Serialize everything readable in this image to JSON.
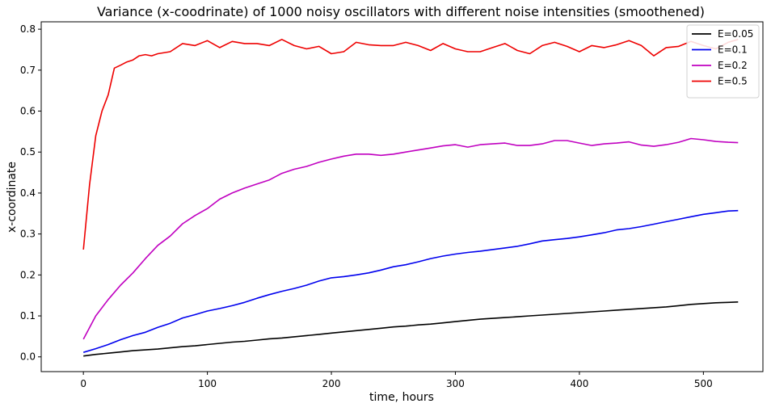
{
  "chart_data": {
    "type": "line",
    "title": "Variance (x-coodrinate) of 1000 noisy oscillators with different noise intensities (smoothened)",
    "xlabel": "time, hours",
    "ylabel": "x-coordinate",
    "xlim": [
      -34,
      548
    ],
    "ylim": [
      -0.036,
      0.818
    ],
    "xticks": [
      0,
      100,
      200,
      300,
      400,
      500
    ],
    "yticks": [
      0.0,
      0.1,
      0.2,
      0.3,
      0.4,
      0.5,
      0.6,
      0.7,
      0.8
    ],
    "grid": false,
    "legend_position": "top-right",
    "series": [
      {
        "name": "E=0.05",
        "color": "#000000",
        "x": [
          0,
          10,
          20,
          30,
          40,
          50,
          60,
          70,
          80,
          90,
          100,
          110,
          120,
          130,
          140,
          150,
          160,
          170,
          180,
          190,
          200,
          210,
          220,
          230,
          240,
          250,
          260,
          270,
          280,
          290,
          300,
          310,
          320,
          330,
          340,
          350,
          360,
          370,
          380,
          390,
          400,
          410,
          420,
          430,
          440,
          450,
          460,
          470,
          480,
          490,
          500,
          510,
          520,
          528
        ],
        "y": [
          0.002,
          0.006,
          0.009,
          0.012,
          0.015,
          0.017,
          0.019,
          0.022,
          0.025,
          0.027,
          0.03,
          0.033,
          0.036,
          0.038,
          0.041,
          0.044,
          0.046,
          0.049,
          0.052,
          0.055,
          0.058,
          0.061,
          0.064,
          0.067,
          0.07,
          0.073,
          0.075,
          0.078,
          0.08,
          0.083,
          0.086,
          0.089,
          0.092,
          0.094,
          0.096,
          0.098,
          0.1,
          0.102,
          0.104,
          0.106,
          0.108,
          0.11,
          0.112,
          0.114,
          0.116,
          0.118,
          0.12,
          0.122,
          0.125,
          0.128,
          0.13,
          0.132,
          0.133,
          0.134
        ]
      },
      {
        "name": "E=0.1",
        "color": "#0000ee",
        "x": [
          0,
          10,
          20,
          30,
          40,
          50,
          60,
          70,
          80,
          90,
          100,
          110,
          120,
          130,
          140,
          150,
          160,
          170,
          180,
          190,
          200,
          210,
          220,
          230,
          240,
          250,
          260,
          270,
          280,
          290,
          300,
          310,
          320,
          330,
          340,
          350,
          360,
          370,
          380,
          390,
          400,
          410,
          420,
          430,
          440,
          450,
          460,
          470,
          480,
          490,
          500,
          510,
          520,
          528
        ],
        "y": [
          0.011,
          0.02,
          0.03,
          0.042,
          0.052,
          0.06,
          0.072,
          0.082,
          0.095,
          0.103,
          0.112,
          0.118,
          0.125,
          0.133,
          0.143,
          0.152,
          0.16,
          0.167,
          0.175,
          0.185,
          0.193,
          0.196,
          0.2,
          0.205,
          0.212,
          0.22,
          0.225,
          0.232,
          0.24,
          0.246,
          0.251,
          0.255,
          0.258,
          0.262,
          0.266,
          0.27,
          0.276,
          0.283,
          0.286,
          0.289,
          0.293,
          0.298,
          0.303,
          0.31,
          0.313,
          0.318,
          0.324,
          0.33,
          0.336,
          0.342,
          0.348,
          0.352,
          0.356,
          0.357
        ]
      },
      {
        "name": "E=0.2",
        "color": "#c000c0",
        "x": [
          0,
          10,
          20,
          30,
          40,
          50,
          60,
          70,
          80,
          90,
          100,
          110,
          120,
          130,
          140,
          150,
          160,
          170,
          180,
          190,
          200,
          210,
          220,
          230,
          240,
          250,
          260,
          270,
          280,
          290,
          300,
          310,
          320,
          330,
          340,
          350,
          360,
          370,
          380,
          390,
          400,
          410,
          420,
          430,
          440,
          450,
          460,
          470,
          480,
          490,
          500,
          510,
          520,
          528
        ],
        "y": [
          0.043,
          0.1,
          0.14,
          0.175,
          0.205,
          0.24,
          0.272,
          0.295,
          0.325,
          0.345,
          0.362,
          0.385,
          0.4,
          0.412,
          0.422,
          0.432,
          0.448,
          0.458,
          0.465,
          0.475,
          0.483,
          0.49,
          0.495,
          0.495,
          0.492,
          0.495,
          0.5,
          0.505,
          0.51,
          0.515,
          0.518,
          0.512,
          0.518,
          0.52,
          0.522,
          0.516,
          0.516,
          0.52,
          0.528,
          0.528,
          0.522,
          0.516,
          0.52,
          0.522,
          0.525,
          0.517,
          0.514,
          0.518,
          0.524,
          0.533,
          0.53,
          0.526,
          0.524,
          0.523
        ]
      },
      {
        "name": "E=0.5",
        "color": "#ee0000",
        "x": [
          0,
          5,
          10,
          15,
          20,
          25,
          30,
          35,
          40,
          45,
          50,
          55,
          60,
          70,
          80,
          90,
          100,
          110,
          120,
          130,
          140,
          150,
          160,
          170,
          180,
          190,
          200,
          210,
          220,
          230,
          240,
          250,
          260,
          270,
          280,
          290,
          300,
          310,
          320,
          330,
          340,
          350,
          360,
          370,
          380,
          390,
          400,
          410,
          420,
          430,
          440,
          450,
          460,
          470,
          480,
          490,
          500,
          510,
          520,
          528
        ],
        "y": [
          0.262,
          0.42,
          0.54,
          0.6,
          0.64,
          0.705,
          0.712,
          0.72,
          0.725,
          0.735,
          0.738,
          0.735,
          0.74,
          0.745,
          0.765,
          0.76,
          0.772,
          0.755,
          0.77,
          0.765,
          0.765,
          0.76,
          0.775,
          0.76,
          0.752,
          0.758,
          0.74,
          0.745,
          0.768,
          0.762,
          0.76,
          0.76,
          0.768,
          0.76,
          0.748,
          0.765,
          0.752,
          0.745,
          0.745,
          0.755,
          0.765,
          0.748,
          0.74,
          0.76,
          0.768,
          0.758,
          0.745,
          0.76,
          0.755,
          0.762,
          0.772,
          0.76,
          0.735,
          0.755,
          0.758,
          0.77,
          0.76,
          0.752,
          0.768,
          0.775
        ]
      }
    ]
  }
}
